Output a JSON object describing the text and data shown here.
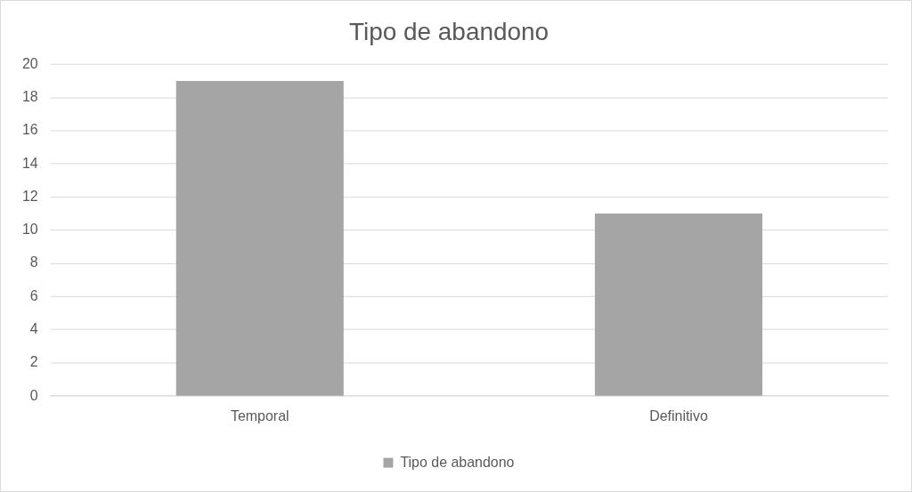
{
  "chart_data": {
    "type": "bar",
    "title": "Tipo de abandono",
    "categories": [
      "Temporal",
      "Definitivo"
    ],
    "series": [
      {
        "name": "Tipo de abandono",
        "color": "#a5a5a5",
        "values": [
          19,
          11
        ]
      }
    ],
    "ylim": [
      0,
      20
    ],
    "yticks": [
      0,
      2,
      4,
      6,
      8,
      10,
      12,
      14,
      16,
      18,
      20
    ],
    "grid": "y",
    "legend": "bottom"
  }
}
